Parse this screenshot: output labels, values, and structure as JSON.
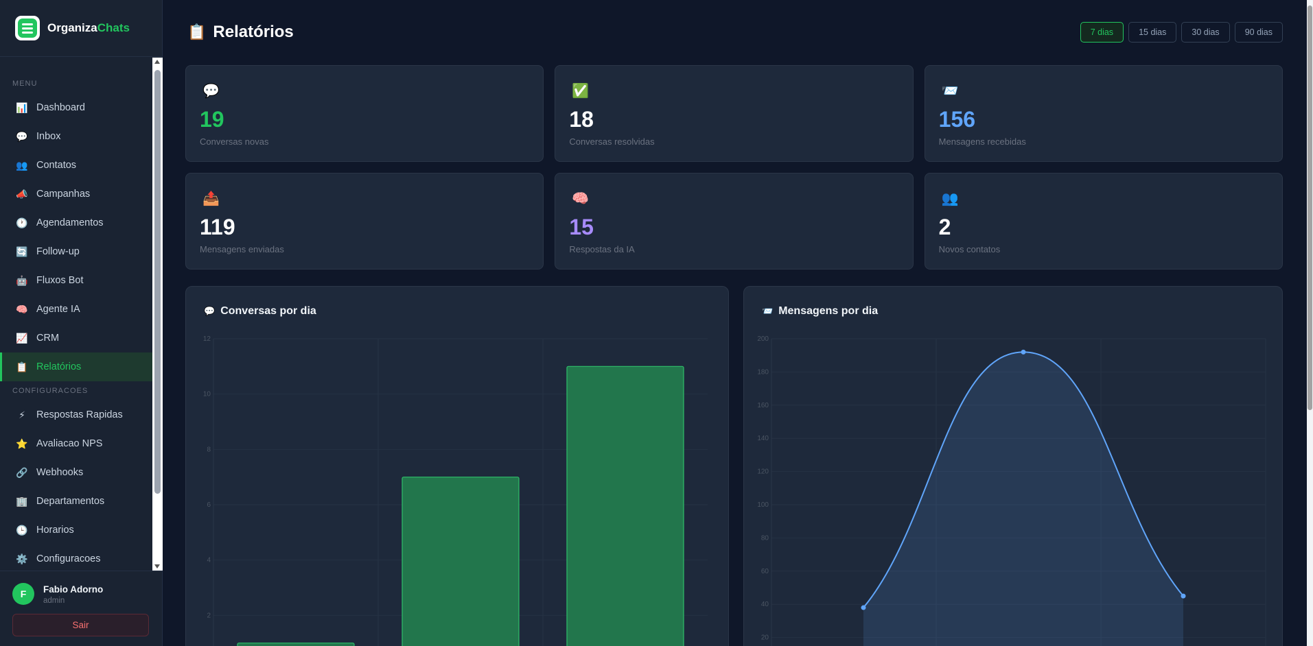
{
  "brand": {
    "name_part1": "Organiza",
    "name_part2": "Chats",
    "logo_icon": "checklist-chat-icon"
  },
  "sidebar": {
    "menu_label": "MENU",
    "settings_label": "CONFIGURACOES",
    "menu_items": [
      {
        "icon": "📊",
        "label": "Dashboard"
      },
      {
        "icon": "💬",
        "label": "Inbox"
      },
      {
        "icon": "👥",
        "label": "Contatos"
      },
      {
        "icon": "📣",
        "label": "Campanhas"
      },
      {
        "icon": "🕐",
        "label": "Agendamentos"
      },
      {
        "icon": "🔄",
        "label": "Follow-up"
      },
      {
        "icon": "🤖",
        "label": "Fluxos Bot"
      },
      {
        "icon": "🧠",
        "label": "Agente IA"
      },
      {
        "icon": "📈",
        "label": "CRM"
      },
      {
        "icon": "📋",
        "label": "Relatórios"
      }
    ],
    "settings_items": [
      {
        "icon": "⚡",
        "label": "Respostas Rapidas"
      },
      {
        "icon": "⭐",
        "label": "Avaliacao NPS"
      },
      {
        "icon": "🔗",
        "label": "Webhooks"
      },
      {
        "icon": "🏢",
        "label": "Departamentos"
      },
      {
        "icon": "🕒",
        "label": "Horarios"
      },
      {
        "icon": "⚙️",
        "label": "Configuracoes"
      }
    ],
    "active_label": "Relatórios"
  },
  "user": {
    "initial": "F",
    "name": "Fabio Adorno",
    "role": "admin",
    "logout_label": "Sair"
  },
  "header": {
    "icon": "📋",
    "title": "Relatórios",
    "ranges": [
      "7 dias",
      "15 dias",
      "30 dias",
      "90 dias"
    ],
    "active_range": "7 dias"
  },
  "stats": [
    {
      "icon": "💬",
      "value": "19",
      "label": "Conversas novas",
      "color": "#22c55e"
    },
    {
      "icon": "✅",
      "value": "18",
      "label": "Conversas resolvidas",
      "color": "#ffffff"
    },
    {
      "icon": "📨",
      "value": "156",
      "label": "Mensagens recebidas",
      "color": "#60a5fa"
    },
    {
      "icon": "📤",
      "value": "119",
      "label": "Mensagens enviadas",
      "color": "#ffffff"
    },
    {
      "icon": "🧠",
      "value": "15",
      "label": "Respostas da IA",
      "color": "#a78bfa"
    },
    {
      "icon": "👥",
      "value": "2",
      "label": "Novos contatos",
      "color": "#ffffff"
    }
  ],
  "charts": {
    "conversations": {
      "icon": "💬",
      "title": "Conversas por dia"
    },
    "messages": {
      "icon": "📨",
      "title": "Mensagens por dia"
    }
  },
  "chart_data": [
    {
      "type": "bar",
      "title": "Conversas por dia",
      "values": [
        1,
        7,
        11
      ],
      "yticks": [
        2,
        4,
        6,
        8,
        10,
        12
      ],
      "ylim": [
        0,
        12
      ],
      "grid": true,
      "color": "#22c55e"
    },
    {
      "type": "area",
      "title": "Mensagens por dia",
      "values": [
        38,
        192,
        45
      ],
      "yticks": [
        20,
        40,
        60,
        80,
        100,
        120,
        140,
        160,
        180,
        200
      ],
      "ylim": [
        0,
        200
      ],
      "grid": true,
      "color": "#60a5fa"
    }
  ]
}
